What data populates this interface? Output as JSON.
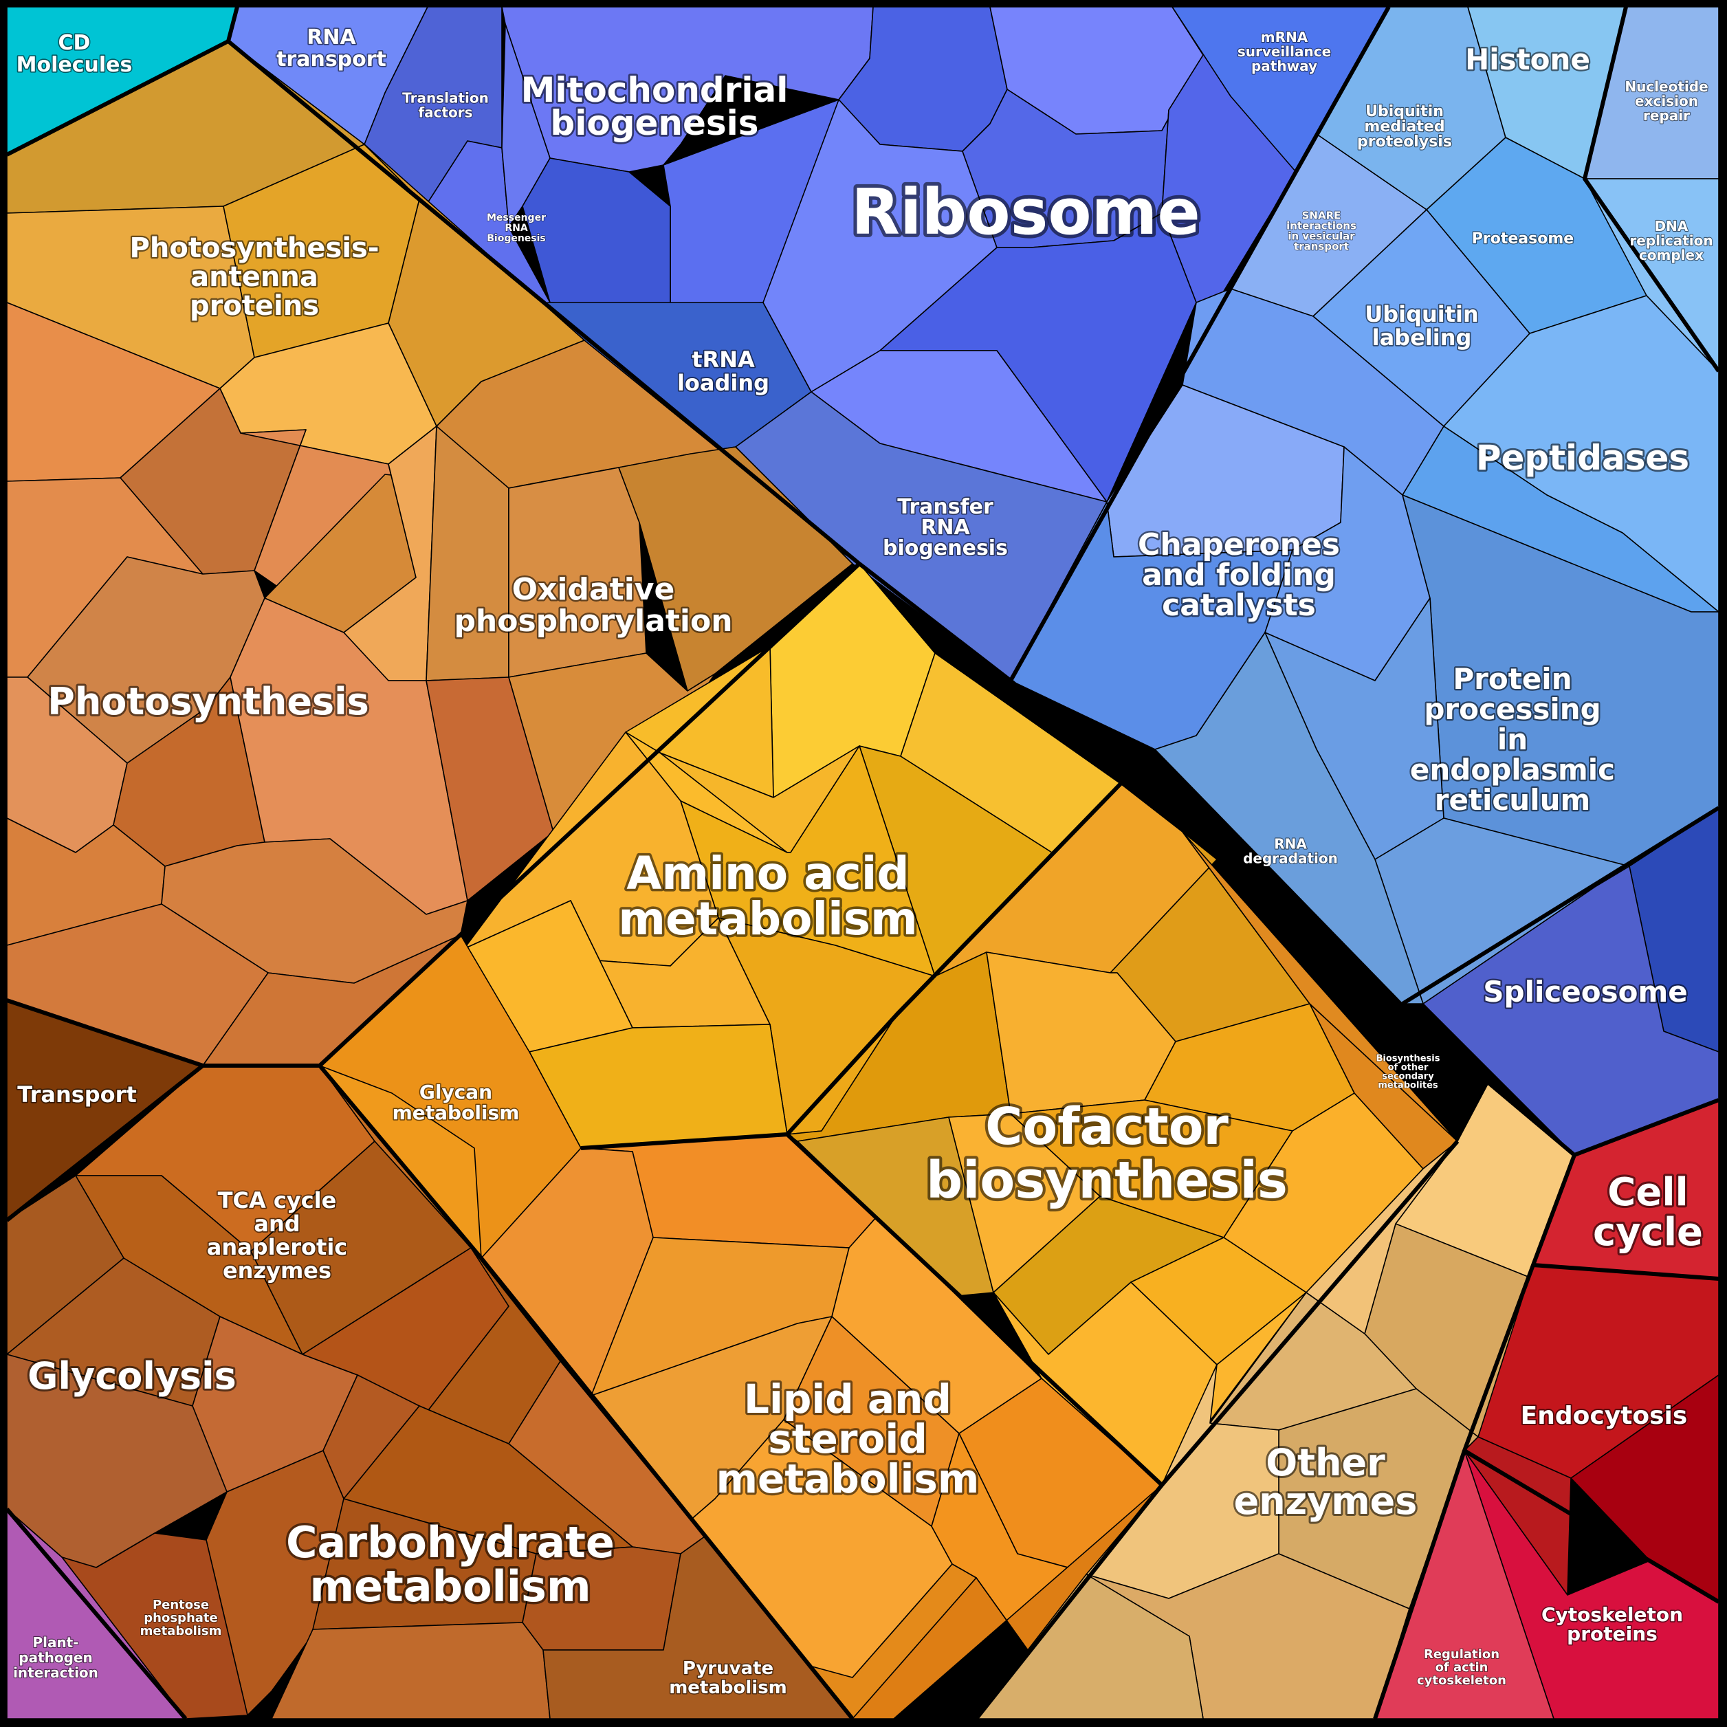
{
  "labels": {
    "cd_molecules": [
      "CD",
      "Molecules"
    ],
    "rna_transport": [
      "RNA",
      "transport"
    ],
    "translation_factors": [
      "Translation",
      "factors"
    ],
    "mitochondrial_biogenesis": [
      "Mitochondrial",
      "biogenesis"
    ],
    "messenger_rna_biogenesis": [
      "Messenger",
      "RNA",
      "Biogenesis"
    ],
    "ribosome": [
      "Ribosome"
    ],
    "trna_loading": [
      "tRNA",
      "loading"
    ],
    "transfer_rna_biogenesis": [
      "Transfer",
      "RNA",
      "biogenesis"
    ],
    "mrna_surveillance": [
      "mRNA",
      "surveillance",
      "pathway"
    ],
    "histone": [
      "Histone"
    ],
    "nucleotide_excision_repair": [
      "Nucleotide",
      "excision",
      "repair"
    ],
    "ubiquitin_mediated_proteolysis": [
      "Ubiquitin",
      "mediated",
      "proteolysis"
    ],
    "snare": [
      "SNARE",
      "interactions",
      "in vesicular",
      "transport"
    ],
    "proteasome": [
      "Proteasome"
    ],
    "dna_replication_complex": [
      "DNA",
      "replication",
      "complex"
    ],
    "ubiquitin_labeling": [
      "Ubiquitin",
      "labeling"
    ],
    "peptidases": [
      "Peptidases"
    ],
    "chaperones": [
      "Chaperones",
      "and folding",
      "catalysts"
    ],
    "protein_processing_er": [
      "Protein",
      "processing",
      "in",
      "endoplasmic",
      "reticulum"
    ],
    "rna_degradation": [
      "RNA",
      "degradation"
    ],
    "spliceosome": [
      "Spliceosome"
    ],
    "photosynthesis_antenna": [
      "Photosynthesis-",
      "antenna",
      "proteins"
    ],
    "oxidative_phosphorylation": [
      "Oxidative",
      "phosphorylation"
    ],
    "photosynthesis": [
      "Photosynthesis"
    ],
    "amino_acid_metabolism": [
      "Amino acid",
      "metabolism"
    ],
    "transport": [
      "Transport"
    ],
    "glycan_metabolism": [
      "Glycan",
      "metabolism"
    ],
    "tca_cycle": [
      "TCA cycle",
      "and",
      "anaplerotic",
      "enzymes"
    ],
    "cofactor_biosynthesis": [
      "Cofactor",
      "biosynthesis"
    ],
    "secondary_metabolites": [
      "Biosynthesis",
      "of other",
      "secondary",
      "metabolites"
    ],
    "glycolysis": [
      "Glycolysis"
    ],
    "lipid_steroid": [
      "Lipid and",
      "steroid",
      "metabolism"
    ],
    "carbohydrate_metabolism": [
      "Carbohydrate",
      "metabolism"
    ],
    "other_enzymes": [
      "Other",
      "enzymes"
    ],
    "cell_cycle": [
      "Cell",
      "cycle"
    ],
    "endocytosis": [
      "Endocytosis"
    ],
    "plant_pathogen": [
      "Plant-",
      "pathogen",
      "interaction"
    ],
    "pentose_phosphate": [
      "Pentose",
      "phosphate",
      "metabolism"
    ],
    "pyruvate_metabolism": [
      "Pyruvate",
      "metabolism"
    ],
    "regulation_actin": [
      "Regulation",
      "of actin",
      "cytoskeleton"
    ],
    "cytoskeleton_proteins": [
      "Cytoskeleton",
      "proteins"
    ]
  },
  "colors": {
    "border": "#000000",
    "label_text": "#ffffff",
    "cd_molecules": "#00c4d4",
    "information_processing_blue": "#6a7cf5",
    "ribosome_blue": "#5a6ff0",
    "protein_fate_light_blue": "#6aa4f2",
    "histone_sky": "#8ecbf3",
    "spliceosome_indigo": "#4a56c8",
    "energy_orange": "#e6954e",
    "photosynthesis_antenna_gold": "#e6a236",
    "oxidative_phosphorylation_ochre": "#d08c36",
    "amino_acid_yellow": "#f5b82a",
    "cofactor_orange": "#f0a420",
    "lipid_orange": "#f0922a",
    "carbohydrate_brown": "#b05a22",
    "transport_dark_brown": "#7e3a08",
    "other_enzymes_tan": "#e0b46a",
    "cell_cycle_red": "#d02030",
    "endocytosis_red": "#b81a1e",
    "cytoskeleton_crimson": "#d8103e",
    "plant_pathogen_purple": "#b05ab4"
  }
}
